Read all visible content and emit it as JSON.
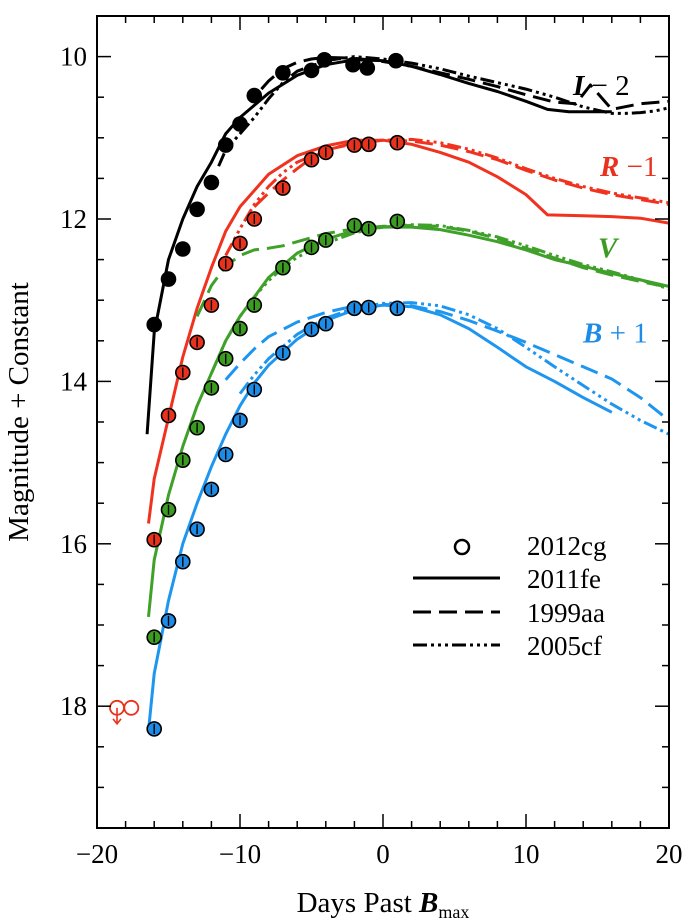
{
  "chart_data": {
    "type": "line",
    "xlabel_main": "Days Past ",
    "xlabel_bold": "B",
    "xlabel_sub": "max",
    "ylabel": "Magnitude + Constant",
    "xlim": [
      -20,
      20
    ],
    "ylim": [
      19.5,
      9.5
    ],
    "y_inverted": true,
    "x_ticks": [
      -20,
      -10,
      0,
      10,
      20
    ],
    "x_tick_labels": [
      "−20",
      "−10",
      "0",
      "10",
      "20"
    ],
    "y_ticks": [
      10,
      12,
      14,
      16,
      18
    ],
    "y_tick_labels": [
      "10",
      "12",
      "14",
      "16",
      "18"
    ],
    "legend": {
      "position": "lower-right",
      "entries": [
        {
          "label": "2012cg",
          "style": "marker"
        },
        {
          "label": "2011fe",
          "style": "solid"
        },
        {
          "label": "1999aa",
          "style": "dashed"
        },
        {
          "label": "2005cf",
          "style": "dash-dot-dot"
        }
      ]
    },
    "bands": [
      {
        "band": "I",
        "label_bold": "I",
        "label_rest": " − 2",
        "label_color": "#000000",
        "color": "#000000",
        "fill": "#000000",
        "sn2012cg": {
          "x": [
            -16,
            -15,
            -14,
            -13,
            -12,
            -11,
            -10,
            -9,
            -7,
            -5,
            -4.1,
            -2.1,
            -1.1,
            0.9
          ],
          "y": [
            13.3,
            12.74,
            12.37,
            11.88,
            11.55,
            11.09,
            10.83,
            10.48,
            10.2,
            10.17,
            10.04,
            10.1,
            10.14,
            10.05
          ]
        },
        "sn2011fe": {
          "x": [
            -16.5,
            -16,
            -15,
            -14,
            -13,
            -12,
            -11,
            -10,
            -8,
            -6,
            -4,
            -2,
            0,
            2,
            4,
            6,
            8,
            10,
            11.5,
            13,
            16
          ],
          "y": [
            14.65,
            13.4,
            12.5,
            12.0,
            11.6,
            11.3,
            10.95,
            10.75,
            10.45,
            10.23,
            10.1,
            10.04,
            10.05,
            10.12,
            10.22,
            10.33,
            10.43,
            10.55,
            10.65,
            10.68,
            10.68
          ]
        },
        "sn1999aa": {
          "x": [
            -8.5,
            -8,
            -7,
            -6,
            -5,
            -4,
            -2,
            0,
            2,
            4,
            6,
            8,
            10,
            12,
            13.5,
            14.5,
            16,
            18,
            20
          ],
          "y": [
            10.4,
            10.3,
            10.15,
            10.07,
            10.03,
            10.01,
            10.02,
            10.06,
            10.12,
            10.2,
            10.28,
            10.37,
            10.47,
            10.56,
            10.58,
            10.35,
            10.65,
            10.58,
            10.55
          ]
        },
        "sn2005cf": {
          "x": [
            -11.5,
            -11,
            -10,
            -9,
            -8,
            -7,
            -6,
            -4,
            -2,
            0,
            2,
            4,
            6,
            8,
            10,
            12,
            14,
            15,
            16,
            17,
            18,
            19,
            20
          ],
          "y": [
            11.35,
            11.15,
            10.95,
            10.75,
            10.52,
            10.32,
            10.18,
            10.05,
            10.0,
            10.03,
            10.08,
            10.15,
            10.24,
            10.32,
            10.4,
            10.5,
            10.62,
            10.66,
            10.7,
            10.7,
            10.69,
            10.67,
            10.63
          ]
        }
      },
      {
        "band": "R",
        "label_bold": "R",
        "label_rest": " −1",
        "label_color": "#e8321e",
        "color": "#f0321e",
        "fill": "#e8321e",
        "sn2012cg": {
          "x": [
            -16,
            -15,
            -14,
            -13,
            -12,
            -11,
            -10,
            -9,
            -7,
            -5,
            -4,
            -2,
            -1,
            1
          ],
          "y": [
            15.95,
            14.42,
            13.89,
            13.52,
            13.06,
            12.55,
            12.3,
            12.0,
            11.62,
            11.27,
            11.18,
            11.09,
            11.08,
            11.06
          ]
        },
        "sn2011fe": {
          "x": [
            -16.4,
            -16,
            -15,
            -14,
            -13,
            -12,
            -11,
            -10,
            -8,
            -6,
            -4,
            -2,
            0,
            2,
            4,
            6,
            8,
            10,
            11.5,
            14,
            16,
            18,
            20
          ],
          "y": [
            15.75,
            15.2,
            14.45,
            13.7,
            13.1,
            12.6,
            12.15,
            11.85,
            11.45,
            11.22,
            11.1,
            11.03,
            11.03,
            11.08,
            11.18,
            11.3,
            11.48,
            11.7,
            11.95,
            11.96,
            11.97,
            11.99,
            12.05
          ]
        },
        "sn1999aa": {
          "x": [
            -9,
            -8,
            -7,
            -6,
            -5,
            -4,
            -2,
            0,
            2,
            4,
            6,
            8,
            10,
            12,
            14,
            16,
            18,
            20
          ],
          "y": [
            11.85,
            11.68,
            11.52,
            11.38,
            11.25,
            11.15,
            11.06,
            11.03,
            11.04,
            11.09,
            11.17,
            11.27,
            11.4,
            11.52,
            11.62,
            11.7,
            11.76,
            11.82
          ]
        },
        "sn2005cf": {
          "x": [
            -11,
            -10,
            -9,
            -8,
            -7,
            -6,
            -4,
            -2,
            0,
            2,
            4,
            6,
            8,
            10,
            12,
            14,
            16,
            18,
            20
          ],
          "y": [
            12.45,
            12.12,
            11.82,
            11.6,
            11.43,
            11.3,
            11.15,
            11.07,
            11.03,
            11.02,
            11.06,
            11.14,
            11.25,
            11.38,
            11.5,
            11.6,
            11.68,
            11.74,
            11.8
          ]
        }
      },
      {
        "band": "V",
        "label_bold": "V",
        "label_rest": "",
        "label_color": "#3c9c22",
        "color": "#3fa02a",
        "fill": "#3c9c22",
        "sn2012cg": {
          "x": [
            -16,
            -15,
            -14,
            -13,
            -12,
            -11,
            -10,
            -9,
            -7,
            -5,
            -4,
            -2,
            -1,
            1
          ],
          "y": [
            17.15,
            15.58,
            14.97,
            14.57,
            14.08,
            13.72,
            13.35,
            13.06,
            12.6,
            12.35,
            12.26,
            12.08,
            12.12,
            12.03
          ]
        },
        "sn2011fe": {
          "x": [
            -16.4,
            -16,
            -15,
            -14,
            -13,
            -12,
            -11,
            -10,
            -8,
            -6,
            -4,
            -2,
            0,
            2,
            4,
            6,
            8,
            10,
            12,
            14,
            16,
            18,
            20
          ],
          "y": [
            16.9,
            16.2,
            15.4,
            14.8,
            14.3,
            13.9,
            13.5,
            13.2,
            12.72,
            12.42,
            12.25,
            12.14,
            12.1,
            12.1,
            12.13,
            12.2,
            12.28,
            12.38,
            12.5,
            12.58,
            12.67,
            12.75,
            12.83
          ]
        },
        "sn1999aa": {
          "x": [
            -13,
            -12,
            -11,
            -10,
            -9,
            -8,
            -7,
            -6,
            -4,
            -2,
            0,
            2,
            4,
            6,
            8,
            10,
            12,
            14,
            16,
            18,
            20
          ],
          "y": [
            13.2,
            12.82,
            12.58,
            12.45,
            12.38,
            12.36,
            12.33,
            12.28,
            12.18,
            12.12,
            12.09,
            12.08,
            12.09,
            12.15,
            12.24,
            12.36,
            12.48,
            12.6,
            12.69,
            12.77,
            12.84
          ]
        },
        "sn2005cf": {
          "x": [
            -12,
            -11,
            -10,
            -9,
            -8,
            -7,
            -6,
            -4,
            -2,
            0,
            2,
            4,
            6,
            8,
            10,
            12,
            14,
            16,
            18,
            20
          ],
          "y": [
            13.9,
            13.5,
            13.2,
            12.96,
            12.76,
            12.6,
            12.47,
            12.3,
            12.17,
            12.1,
            12.07,
            12.08,
            12.14,
            12.22,
            12.33,
            12.45,
            12.56,
            12.65,
            12.75,
            12.86
          ]
        }
      },
      {
        "band": "B",
        "label_bold": "B",
        "label_rest": " + 1",
        "label_color": "#1e8ce6",
        "color": "#1e96f0",
        "fill": "#1e8ce6",
        "sn2012cg": {
          "x": [
            -16,
            -15,
            -14,
            -13,
            -12,
            -11,
            -10,
            -9,
            -7,
            -5,
            -4,
            -2,
            -1,
            1
          ],
          "y": [
            18.28,
            16.95,
            16.22,
            15.82,
            15.33,
            14.9,
            14.48,
            14.1,
            13.65,
            13.36,
            13.29,
            13.1,
            13.09,
            13.1
          ]
        },
        "sn2011fe": {
          "x": [
            -16.4,
            -16,
            -15,
            -14,
            -13,
            -12,
            -11,
            -10,
            -9,
            -8,
            -6,
            -4,
            -2,
            0,
            2,
            4,
            6,
            8,
            10,
            12,
            14,
            16
          ],
          "y": [
            18.3,
            17.6,
            16.7,
            16.0,
            15.5,
            15.05,
            14.65,
            14.3,
            14.02,
            13.8,
            13.48,
            13.25,
            13.12,
            13.06,
            13.08,
            13.18,
            13.35,
            13.58,
            13.82,
            14.0,
            14.2,
            14.38
          ]
        },
        "sn1999aa": {
          "x": [
            -11,
            -10,
            -9,
            -8,
            -6,
            -4,
            -2,
            0,
            2,
            4,
            6,
            8,
            10,
            12,
            14,
            16,
            18,
            20
          ],
          "y": [
            13.98,
            13.78,
            13.6,
            13.45,
            13.27,
            13.15,
            13.07,
            13.05,
            13.07,
            13.14,
            13.25,
            13.38,
            13.52,
            13.67,
            13.82,
            13.97,
            14.2,
            14.48
          ]
        },
        "sn2005cf": {
          "x": [
            -10,
            -9,
            -8,
            -6,
            -4,
            -2,
            0,
            2,
            4,
            6,
            8,
            10,
            12,
            14,
            16,
            18,
            20
          ],
          "y": [
            14.15,
            13.92,
            13.72,
            13.42,
            13.22,
            13.1,
            13.04,
            13.03,
            13.07,
            13.18,
            13.35,
            13.58,
            13.82,
            14.05,
            14.28,
            14.48,
            14.65
          ]
        }
      }
    ],
    "upper_limits": {
      "color": "#e8321e",
      "points": [
        {
          "x": -18.6,
          "y": 18.02,
          "arrow": true
        },
        {
          "x": -17.6,
          "y": 18.02,
          "arrow": false
        }
      ]
    }
  }
}
